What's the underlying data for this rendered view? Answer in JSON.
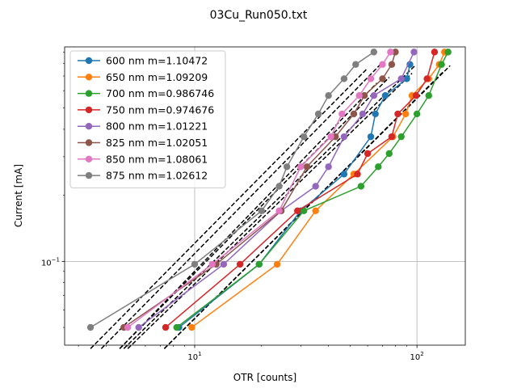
{
  "chart_data": {
    "type": "line",
    "title": "03Cu_Run050.txt",
    "xlabel": "OTR [counts]",
    "ylabel": "Current [mA]",
    "xscale": "log",
    "yscale": "log",
    "xlim": [
      2.6,
      165
    ],
    "ylim": [
      0.0415,
      0.95
    ],
    "grid": true,
    "legend_placement": "upper left",
    "x_major_ticks": [
      {
        "value": 10,
        "base": "10",
        "exp": "1"
      },
      {
        "value": 100,
        "base": "10",
        "exp": "2"
      }
    ],
    "y_major_ticks": [
      {
        "value": 0.1,
        "base": "10",
        "exp": "−1"
      }
    ],
    "series": [
      {
        "name": "600 nm  m=1.10472",
        "color": "#1f77b4",
        "x": [
          8.5,
          19.5,
          30,
          47,
          62,
          65,
          72,
          90,
          93
        ],
        "y": [
          0.05,
          0.097,
          0.17,
          0.25,
          0.37,
          0.47,
          0.57,
          0.68,
          0.79
        ],
        "fit_x": [
          4.8,
          98
        ],
        "fit_y": [
          0.04,
          0.78
        ]
      },
      {
        "name": "650 nm  m=1.09209",
        "color": "#ff7f0e",
        "x": [
          9.7,
          23.5,
          35,
          52,
          78,
          89,
          95,
          113,
          126,
          133
        ],
        "y": [
          0.05,
          0.097,
          0.17,
          0.25,
          0.37,
          0.47,
          0.57,
          0.68,
          0.79,
          0.9
        ],
        "fit_x": [
          7.3,
          141
        ],
        "fit_y": [
          0.04,
          0.78
        ]
      },
      {
        "name": "700 nm  m=0.986746",
        "color": "#2ca02c",
        "x": [
          8.3,
          19.5,
          31,
          56,
          67,
          75,
          85,
          100,
          113,
          129,
          138
        ],
        "y": [
          0.05,
          0.097,
          0.17,
          0.22,
          0.27,
          0.31,
          0.37,
          0.47,
          0.57,
          0.79,
          0.9
        ],
        "fit_x": [
          7.3,
          131
        ],
        "fit_y": [
          0.04,
          0.73
        ]
      },
      {
        "name": "750 nm  m=0.974676",
        "color": "#d62728",
        "x": [
          7.4,
          16,
          29,
          54,
          60,
          77,
          82,
          99,
          111,
          120
        ],
        "y": [
          0.05,
          0.097,
          0.17,
          0.25,
          0.31,
          0.37,
          0.47,
          0.57,
          0.68,
          0.9
        ],
        "fit_x": [
          5,
          95
        ],
        "fit_y": [
          0.04,
          0.72
        ]
      },
      {
        "name": "800 nm  m=1.01221",
        "color": "#9467bd",
        "x": [
          5.6,
          13.5,
          24.5,
          35,
          40,
          47,
          57,
          64,
          85,
          97
        ],
        "y": [
          0.05,
          0.097,
          0.17,
          0.22,
          0.27,
          0.37,
          0.47,
          0.57,
          0.68,
          0.9
        ],
        "fit_x": [
          4.6,
          75
        ],
        "fit_y": [
          0.04,
          0.69
        ]
      },
      {
        "name": "825 nm  m=1.02051",
        "color": "#8c564b",
        "x": [
          4.8,
          12.5,
          24.5,
          32,
          43,
          52,
          58,
          70,
          77,
          80
        ],
        "y": [
          0.05,
          0.097,
          0.17,
          0.27,
          0.37,
          0.47,
          0.57,
          0.68,
          0.79,
          0.9
        ],
        "fit_x": [
          4.6,
          66
        ],
        "fit_y": [
          0.04,
          0.65
        ]
      },
      {
        "name": "850 nm  m=1.08061",
        "color": "#e377c2",
        "x": [
          5,
          12,
          24,
          30,
          41,
          46,
          55,
          62,
          70,
          76
        ],
        "y": [
          0.05,
          0.097,
          0.17,
          0.27,
          0.37,
          0.47,
          0.57,
          0.68,
          0.79,
          0.9
        ],
        "fit_x": [
          3.8,
          68.5
        ],
        "fit_y": [
          0.04,
          0.79
        ]
      },
      {
        "name": "875 nm  m=1.02612",
        "color": "#7f7f7f",
        "x": [
          3.4,
          10,
          20,
          24,
          26,
          31,
          36,
          40,
          47,
          53,
          64
        ],
        "y": [
          0.05,
          0.097,
          0.17,
          0.22,
          0.27,
          0.37,
          0.47,
          0.57,
          0.68,
          0.79,
          0.9
        ],
        "fit_x": [
          3.4,
          60
        ],
        "fit_y": [
          0.04,
          0.76
        ]
      }
    ]
  }
}
